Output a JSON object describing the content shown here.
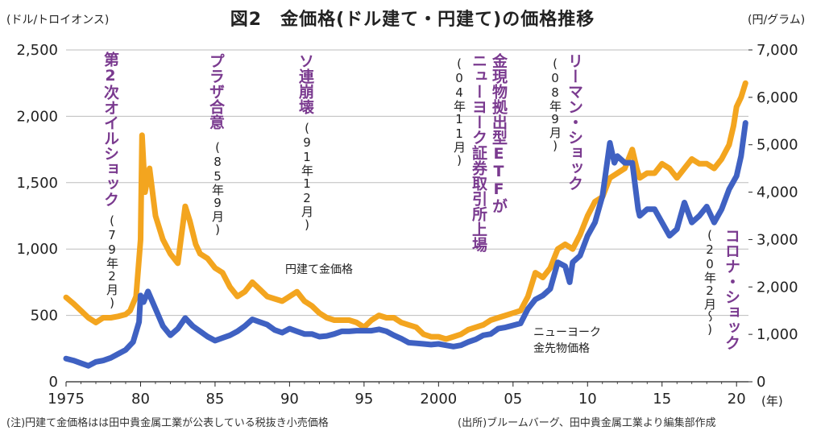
{
  "title": "図2　金価格(ドル建て・円建て)の価格推移",
  "left_unit": "(ドル/トロイオンス)",
  "right_unit": "(円/グラム)",
  "x_unit": "(年)",
  "footer_note": "(注)円建て金価格はは田中貴金属工業が公表している税抜き小売価格",
  "footer_source": "(出所)ブルームバーグ、田中貴金属工業より編集部作成",
  "events": [
    {
      "label": "第2次オイルショック",
      "date": "(79年2月)"
    },
    {
      "label": "プラザ合意",
      "date": "(85年9月)"
    },
    {
      "label": "ソ連崩壊",
      "date": "(91年12月)"
    },
    {
      "label": "金現物拠出型ETFが",
      "label2": "ニューヨーク証券取引所上場",
      "date": "(04年11月)"
    },
    {
      "label": "リーマン・ショック",
      "date": "(08年9月)"
    },
    {
      "label": "コロナ・ショック",
      "date": "(20年2月〜)"
    }
  ],
  "series_labels": {
    "yen": "円建て金価格",
    "usd_line1": "ニューヨーク",
    "usd_line2": "金先物価格"
  },
  "chart_data": {
    "type": "line",
    "x_ticks": [
      "1975",
      "80",
      "85",
      "90",
      "95",
      "2000",
      "05",
      "10",
      "15",
      "20"
    ],
    "y_left_ticks": [
      "0",
      "500",
      "1,000",
      "1,500",
      "2,000",
      "2,500"
    ],
    "y_right_ticks": [
      "0",
      "1,000",
      "2,000",
      "3,000",
      "4,000",
      "5,000",
      "6,000",
      "7,000"
    ],
    "y_left_range": [
      0,
      2500
    ],
    "y_right_range": [
      0,
      7000
    ],
    "x_range": [
      1975,
      2020.8
    ],
    "grid": "horizontal",
    "colors": {
      "yen": "#f3a51f",
      "usd": "#3f61c2"
    },
    "series": [
      {
        "name": "円建て金価格",
        "axis": "right",
        "color": "#f3a51f",
        "points": [
          [
            1975,
            1780
          ],
          [
            1975.5,
            1650
          ],
          [
            1976,
            1500
          ],
          [
            1976.5,
            1350
          ],
          [
            1977,
            1250
          ],
          [
            1977.5,
            1350
          ],
          [
            1978,
            1350
          ],
          [
            1978.5,
            1380
          ],
          [
            1979,
            1420
          ],
          [
            1979.3,
            1500
          ],
          [
            1979.7,
            1800
          ],
          [
            1980,
            3000
          ],
          [
            1980.1,
            5200
          ],
          [
            1980.3,
            4000
          ],
          [
            1980.6,
            4500
          ],
          [
            1981,
            3500
          ],
          [
            1981.5,
            3000
          ],
          [
            1982,
            2700
          ],
          [
            1982.5,
            2500
          ],
          [
            1983,
            3700
          ],
          [
            1983.3,
            3400
          ],
          [
            1983.7,
            2900
          ],
          [
            1984,
            2700
          ],
          [
            1984.5,
            2600
          ],
          [
            1985,
            2400
          ],
          [
            1985.5,
            2300
          ],
          [
            1986,
            2000
          ],
          [
            1986.5,
            1800
          ],
          [
            1987,
            1900
          ],
          [
            1987.5,
            2100
          ],
          [
            1988,
            1950
          ],
          [
            1988.5,
            1800
          ],
          [
            1989,
            1750
          ],
          [
            1989.5,
            1700
          ],
          [
            1990,
            1800
          ],
          [
            1990.5,
            1900
          ],
          [
            1991,
            1700
          ],
          [
            1991.5,
            1600
          ],
          [
            1992,
            1450
          ],
          [
            1992.5,
            1350
          ],
          [
            1993,
            1300
          ],
          [
            1993.5,
            1300
          ],
          [
            1994,
            1300
          ],
          [
            1994.5,
            1250
          ],
          [
            1995,
            1150
          ],
          [
            1995.5,
            1300
          ],
          [
            1996,
            1400
          ],
          [
            1996.5,
            1350
          ],
          [
            1997,
            1350
          ],
          [
            1997.5,
            1250
          ],
          [
            1998,
            1200
          ],
          [
            1998.5,
            1150
          ],
          [
            1999,
            1000
          ],
          [
            1999.5,
            950
          ],
          [
            2000,
            950
          ],
          [
            2000.5,
            900
          ],
          [
            2001,
            950
          ],
          [
            2001.5,
            1000
          ],
          [
            2002,
            1100
          ],
          [
            2002.5,
            1150
          ],
          [
            2003,
            1200
          ],
          [
            2003.5,
            1300
          ],
          [
            2004,
            1350
          ],
          [
            2004.5,
            1400
          ],
          [
            2005,
            1450
          ],
          [
            2005.5,
            1500
          ],
          [
            2006,
            1800
          ],
          [
            2006.5,
            2300
          ],
          [
            2007,
            2200
          ],
          [
            2007.5,
            2400
          ],
          [
            2008,
            2800
          ],
          [
            2008.5,
            2900
          ],
          [
            2009,
            2800
          ],
          [
            2009.5,
            3100
          ],
          [
            2010,
            3500
          ],
          [
            2010.5,
            3800
          ],
          [
            2011,
            3900
          ],
          [
            2011.5,
            4300
          ],
          [
            2012,
            4400
          ],
          [
            2012.5,
            4500
          ],
          [
            2013,
            4900
          ],
          [
            2013.3,
            4500
          ],
          [
            2013.5,
            4300
          ],
          [
            2014,
            4400
          ],
          [
            2014.5,
            4400
          ],
          [
            2015,
            4600
          ],
          [
            2015.5,
            4500
          ],
          [
            2016,
            4300
          ],
          [
            2016.5,
            4500
          ],
          [
            2017,
            4700
          ],
          [
            2017.5,
            4600
          ],
          [
            2018,
            4600
          ],
          [
            2018.5,
            4500
          ],
          [
            2019,
            4700
          ],
          [
            2019.5,
            5000
          ],
          [
            2019.8,
            5400
          ],
          [
            2020,
            5800
          ],
          [
            2020.3,
            6000
          ],
          [
            2020.6,
            6300
          ]
        ]
      },
      {
        "name": "ニューヨーク金先物価格",
        "axis": "left",
        "color": "#3f61c2",
        "points": [
          [
            1975,
            175
          ],
          [
            1975.5,
            160
          ],
          [
            1976,
            140
          ],
          [
            1976.5,
            120
          ],
          [
            1977,
            150
          ],
          [
            1977.5,
            160
          ],
          [
            1978,
            180
          ],
          [
            1978.5,
            210
          ],
          [
            1979,
            240
          ],
          [
            1979.5,
            300
          ],
          [
            1979.9,
            450
          ],
          [
            1980,
            650
          ],
          [
            1980.2,
            600
          ],
          [
            1980.5,
            680
          ],
          [
            1981,
            550
          ],
          [
            1981.5,
            420
          ],
          [
            1982,
            350
          ],
          [
            1982.5,
            400
          ],
          [
            1983,
            480
          ],
          [
            1983.5,
            420
          ],
          [
            1984,
            380
          ],
          [
            1984.5,
            340
          ],
          [
            1985,
            310
          ],
          [
            1985.5,
            330
          ],
          [
            1986,
            350
          ],
          [
            1986.5,
            380
          ],
          [
            1987,
            420
          ],
          [
            1987.5,
            470
          ],
          [
            1988,
            450
          ],
          [
            1988.5,
            430
          ],
          [
            1989,
            390
          ],
          [
            1989.5,
            370
          ],
          [
            1990,
            400
          ],
          [
            1990.5,
            380
          ],
          [
            1991,
            360
          ],
          [
            1991.5,
            360
          ],
          [
            1992,
            340
          ],
          [
            1992.5,
            345
          ],
          [
            1993,
            360
          ],
          [
            1993.5,
            380
          ],
          [
            1994,
            380
          ],
          [
            1994.5,
            385
          ],
          [
            1995,
            385
          ],
          [
            1995.5,
            385
          ],
          [
            1996,
            395
          ],
          [
            1996.5,
            380
          ],
          [
            1997,
            350
          ],
          [
            1997.5,
            325
          ],
          [
            1998,
            295
          ],
          [
            1998.5,
            290
          ],
          [
            1999,
            285
          ],
          [
            1999.5,
            280
          ],
          [
            2000,
            285
          ],
          [
            2000.5,
            275
          ],
          [
            2001,
            265
          ],
          [
            2001.5,
            275
          ],
          [
            2002,
            300
          ],
          [
            2002.5,
            320
          ],
          [
            2003,
            350
          ],
          [
            2003.5,
            360
          ],
          [
            2004,
            400
          ],
          [
            2004.5,
            410
          ],
          [
            2005,
            425
          ],
          [
            2005.5,
            440
          ],
          [
            2006,
            550
          ],
          [
            2006.5,
            620
          ],
          [
            2007,
            650
          ],
          [
            2007.5,
            700
          ],
          [
            2008,
            900
          ],
          [
            2008.5,
            870
          ],
          [
            2008.8,
            750
          ],
          [
            2009,
            900
          ],
          [
            2009.5,
            950
          ],
          [
            2010,
            1100
          ],
          [
            2010.5,
            1200
          ],
          [
            2011,
            1400
          ],
          [
            2011.5,
            1800
          ],
          [
            2011.8,
            1650
          ],
          [
            2012,
            1700
          ],
          [
            2012.5,
            1650
          ],
          [
            2013,
            1650
          ],
          [
            2013.4,
            1300
          ],
          [
            2013.5,
            1250
          ],
          [
            2014,
            1300
          ],
          [
            2014.5,
            1300
          ],
          [
            2015,
            1200
          ],
          [
            2015.5,
            1100
          ],
          [
            2016,
            1150
          ],
          [
            2016.5,
            1350
          ],
          [
            2017,
            1200
          ],
          [
            2017.5,
            1250
          ],
          [
            2018,
            1320
          ],
          [
            2018.5,
            1200
          ],
          [
            2019,
            1300
          ],
          [
            2019.5,
            1450
          ],
          [
            2020,
            1550
          ],
          [
            2020.3,
            1700
          ],
          [
            2020.6,
            1950
          ]
        ]
      }
    ]
  }
}
